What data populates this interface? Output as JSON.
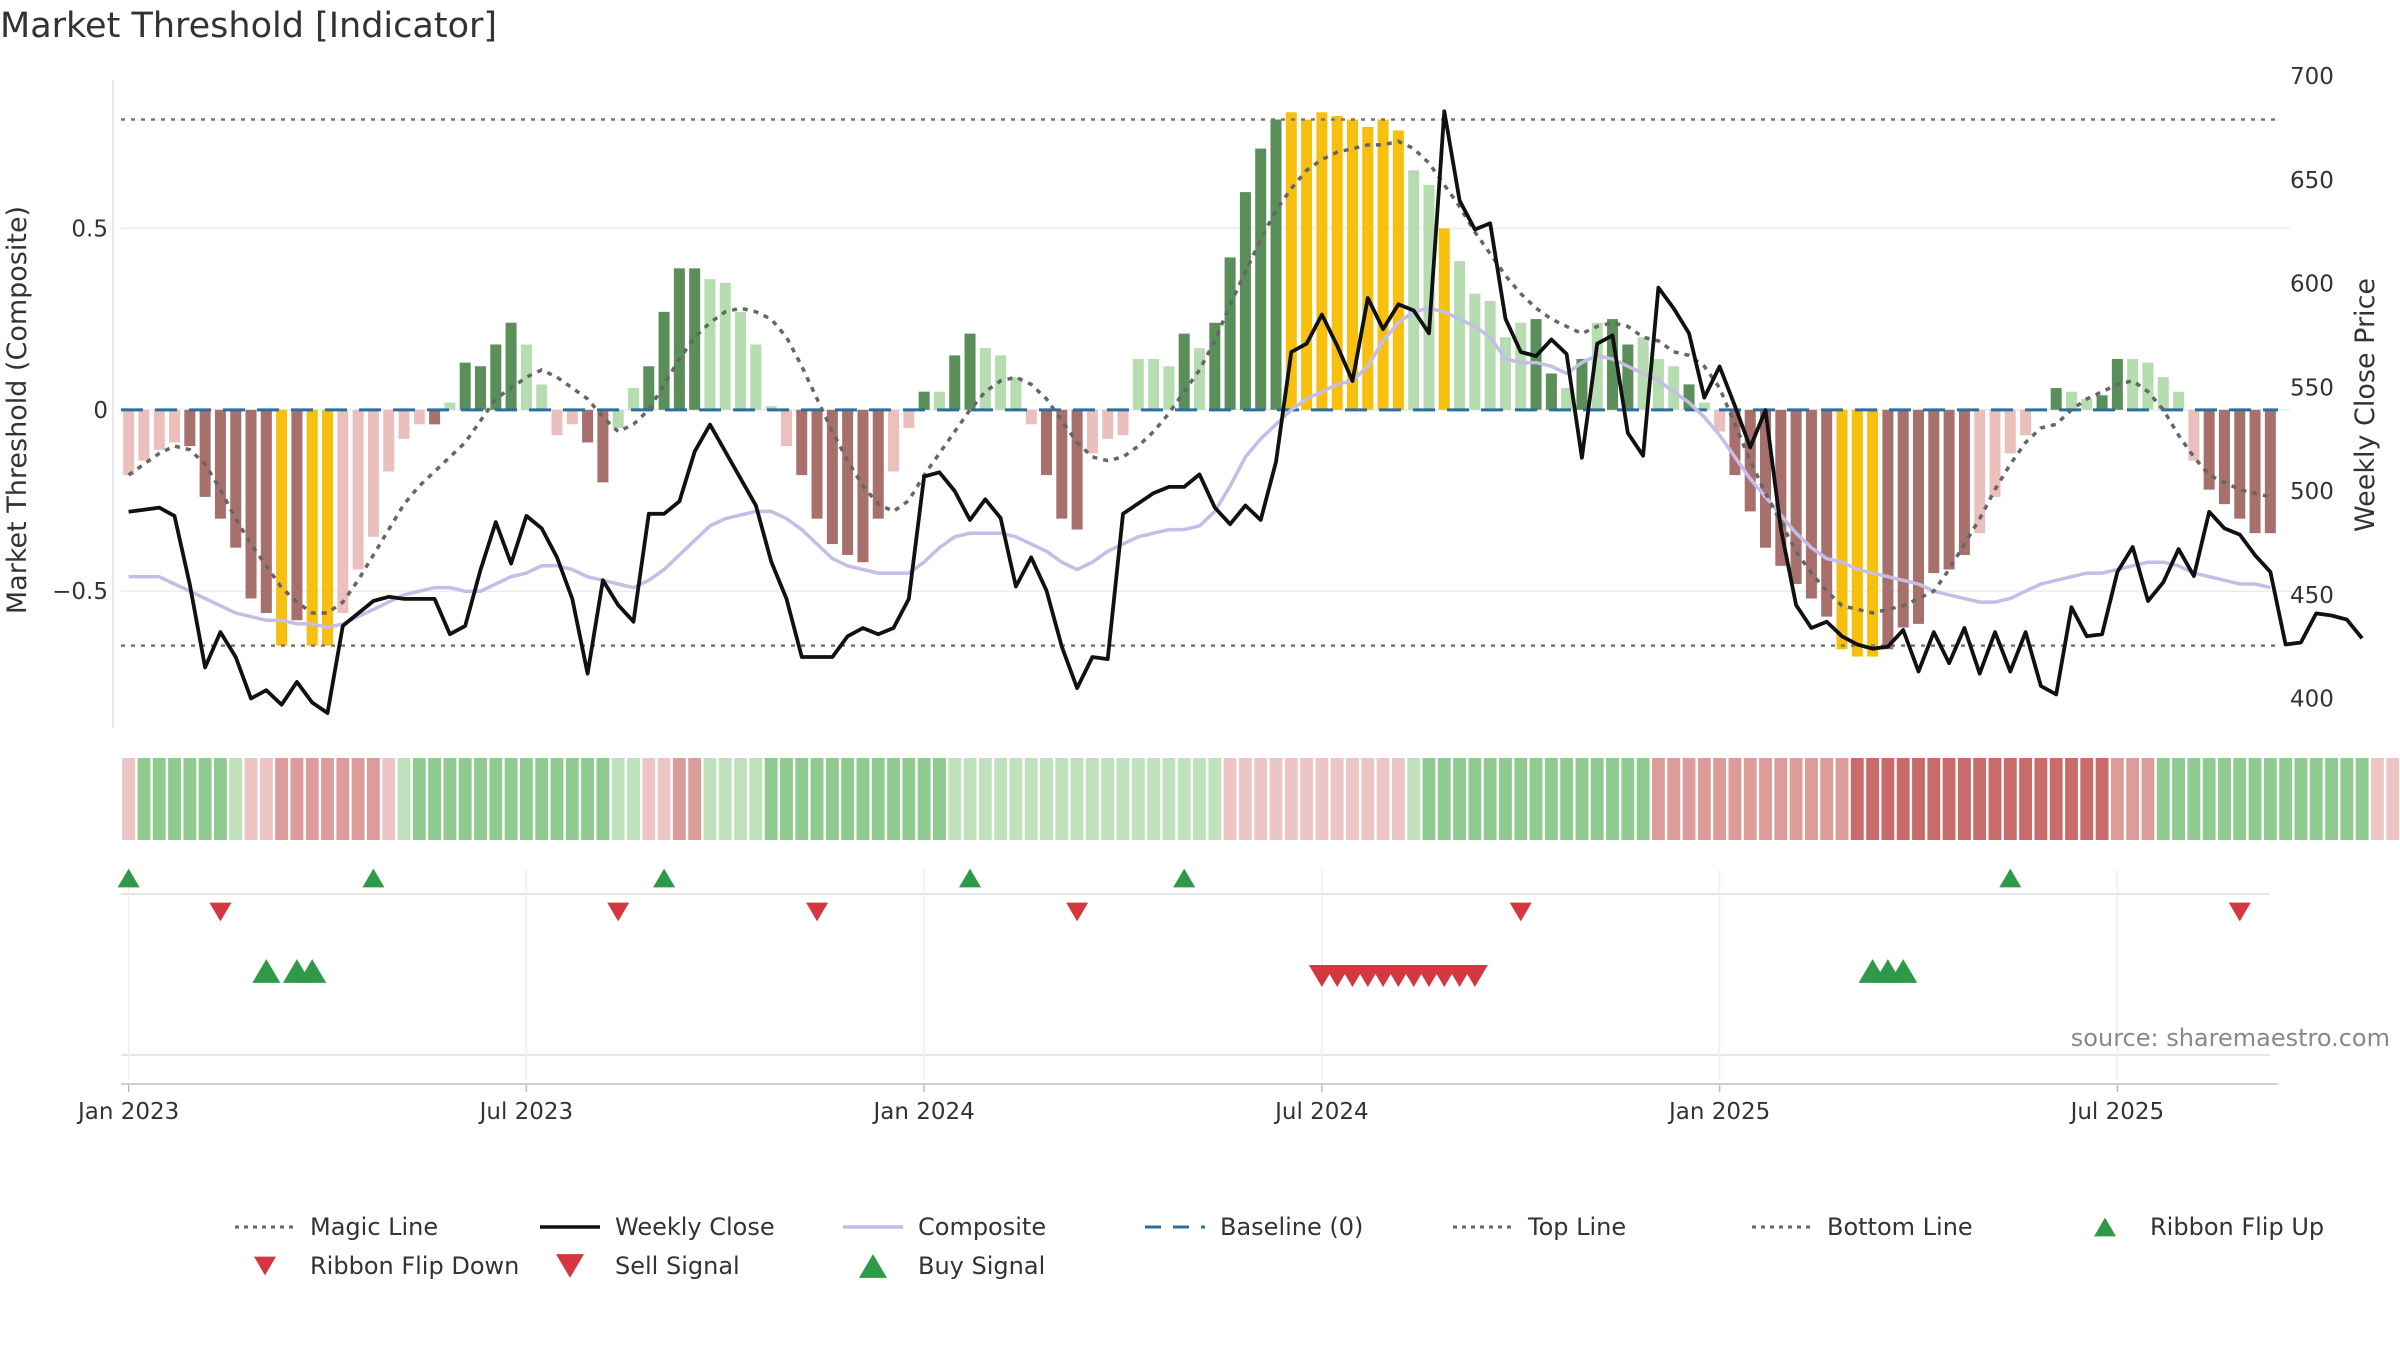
{
  "title": "Market Threshold [Indicator]",
  "source_text": "source: sharemaestro.com",
  "colors": {
    "weekly_close": "#111111",
    "composite": "#c5bde8",
    "magic_line": "#666666",
    "baseline": "#2a6fa0",
    "threshold_lines": "#777777",
    "bar_strong_green": "#5a8f5a",
    "bar_light_green": "#b5ddb0",
    "bar_strong_red": "#a8706c",
    "bar_light_red": "#ebc0bc",
    "bar_extreme": "#f7bf0e",
    "signal_up": "#2e9a47",
    "signal_down": "#d43740"
  },
  "chart_data": {
    "type": "bar",
    "title": "Market Threshold [Indicator]",
    "xlabel": "",
    "ylabel_left": "Market Threshold (Composite)",
    "ylabel_right": "Weekly Close Price",
    "ylim_left": [
      -0.91,
      0.92
    ],
    "ylim_right": [
      380,
      700
    ],
    "yticks_left": [
      0.5,
      0,
      -0.5
    ],
    "ytick_labels_left": [
      "0.5",
      "0",
      "−0.5"
    ],
    "yticks_right": [
      400,
      450,
      500,
      550,
      600,
      650,
      700
    ],
    "xticks": [
      "Jan 2023",
      "Jul 2023",
      "Jan 2024",
      "Jul 2024",
      "Jan 2025",
      "Jul 2025"
    ],
    "xtick_weeks": [
      0,
      26,
      52,
      78,
      104,
      130
    ],
    "start_label": "Jan 2023",
    "grid": true,
    "top_line": 0.8,
    "bottom_line": -0.65,
    "baseline": 0,
    "composite_bars": [
      -0.18,
      -0.14,
      -0.11,
      -0.09,
      -0.1,
      -0.24,
      -0.3,
      -0.38,
      -0.52,
      -0.56,
      -0.65,
      -0.58,
      -0.65,
      -0.65,
      -0.56,
      -0.44,
      -0.35,
      -0.17,
      -0.08,
      -0.04,
      -0.04,
      0.02,
      0.13,
      0.12,
      0.18,
      0.24,
      0.18,
      0.07,
      -0.07,
      -0.04,
      -0.09,
      -0.2,
      -0.05,
      0.06,
      0.12,
      0.27,
      0.39,
      0.39,
      0.36,
      0.35,
      0.27,
      0.18,
      0.01,
      -0.1,
      -0.18,
      -0.3,
      -0.37,
      -0.4,
      -0.42,
      -0.3,
      -0.17,
      -0.05,
      0.05,
      0.05,
      0.15,
      0.21,
      0.17,
      0.15,
      0.09,
      -0.04,
      -0.18,
      -0.3,
      -0.33,
      -0.12,
      -0.08,
      -0.07,
      0.14,
      0.14,
      0.12,
      0.21,
      0.17,
      0.24,
      0.42,
      0.6,
      0.72,
      0.8,
      0.82,
      0.8,
      0.82,
      0.81,
      0.8,
      0.78,
      0.8,
      0.77,
      0.66,
      0.62,
      0.5,
      0.41,
      0.32,
      0.3,
      0.2,
      0.24,
      0.25,
      0.1,
      0.06,
      0.14,
      0.24,
      0.25,
      0.18,
      0.2,
      0.14,
      0.12,
      0.07,
      0.02,
      -0.06,
      -0.18,
      -0.28,
      -0.38,
      -0.43,
      -0.48,
      -0.52,
      -0.57,
      -0.66,
      -0.68,
      -0.68,
      -0.66,
      -0.6,
      -0.59,
      -0.45,
      -0.44,
      -0.4,
      -0.34,
      -0.24,
      -0.12,
      -0.07,
      0.0,
      0.06,
      0.05,
      0.03,
      0.04,
      0.14,
      0.14,
      0.13,
      0.09,
      0.05,
      -0.14,
      -0.22,
      -0.26,
      -0.3,
      -0.34,
      -0.34
    ],
    "bar_categories": [
      "light_red",
      "light_red",
      "light_red",
      "light_red",
      "strong_red",
      "strong_red",
      "strong_red",
      "strong_red",
      "strong_red",
      "strong_red",
      "extreme",
      "strong_red",
      "extreme",
      "extreme",
      "light_red",
      "light_red",
      "light_red",
      "light_red",
      "light_red",
      "light_red",
      "strong_red",
      "light_green",
      "strong_green",
      "strong_green",
      "strong_green",
      "strong_green",
      "light_green",
      "light_green",
      "light_red",
      "light_red",
      "strong_red",
      "strong_red",
      "light_green",
      "light_green",
      "strong_green",
      "strong_green",
      "strong_green",
      "strong_green",
      "light_green",
      "light_green",
      "light_green",
      "light_green",
      "light_green",
      "light_red",
      "strong_red",
      "strong_red",
      "strong_red",
      "strong_red",
      "strong_red",
      "strong_red",
      "light_red",
      "light_red",
      "strong_green",
      "light_green",
      "strong_green",
      "strong_green",
      "light_green",
      "light_green",
      "light_green",
      "light_red",
      "strong_red",
      "strong_red",
      "strong_red",
      "light_red",
      "light_red",
      "light_red",
      "light_green",
      "light_green",
      "light_green",
      "strong_green",
      "light_green",
      "strong_green",
      "strong_green",
      "strong_green",
      "strong_green",
      "strong_green",
      "extreme",
      "extreme",
      "extreme",
      "extreme",
      "extreme",
      "extreme",
      "extreme",
      "extreme",
      "light_green",
      "light_green",
      "extreme",
      "light_green",
      "light_green",
      "light_green",
      "light_green",
      "light_green",
      "strong_green",
      "strong_green",
      "light_green",
      "strong_green",
      "light_green",
      "strong_green",
      "strong_green",
      "light_green",
      "light_green",
      "light_green",
      "strong_green",
      "light_green",
      "light_red",
      "strong_red",
      "strong_red",
      "strong_red",
      "strong_red",
      "strong_red",
      "strong_red",
      "strong_red",
      "extreme",
      "extreme",
      "extreme",
      "strong_red",
      "strong_red",
      "strong_red",
      "strong_red",
      "strong_red",
      "strong_red",
      "light_red",
      "light_red",
      "light_red",
      "light_red",
      "light_green",
      "strong_green",
      "light_green",
      "light_green",
      "strong_green",
      "strong_green",
      "light_green",
      "light_green",
      "light_green",
      "light_green",
      "light_red",
      "strong_red",
      "strong_red",
      "strong_red",
      "strong_red",
      "strong_red"
    ],
    "composite_line": [
      -0.46,
      -0.46,
      -0.46,
      -0.48,
      -0.5,
      -0.52,
      -0.54,
      -0.56,
      -0.57,
      -0.58,
      -0.58,
      -0.59,
      -0.59,
      -0.6,
      -0.59,
      -0.57,
      -0.55,
      -0.53,
      -0.51,
      -0.5,
      -0.49,
      -0.49,
      -0.5,
      -0.5,
      -0.48,
      -0.46,
      -0.45,
      -0.43,
      -0.43,
      -0.44,
      -0.46,
      -0.47,
      -0.48,
      -0.49,
      -0.47,
      -0.44,
      -0.4,
      -0.36,
      -0.32,
      -0.3,
      -0.29,
      -0.28,
      -0.28,
      -0.3,
      -0.33,
      -0.37,
      -0.41,
      -0.43,
      -0.44,
      -0.45,
      -0.45,
      -0.45,
      -0.42,
      -0.38,
      -0.35,
      -0.34,
      -0.34,
      -0.34,
      -0.35,
      -0.37,
      -0.39,
      -0.42,
      -0.44,
      -0.42,
      -0.39,
      -0.37,
      -0.35,
      -0.34,
      -0.33,
      -0.33,
      -0.32,
      -0.28,
      -0.21,
      -0.13,
      -0.08,
      -0.04,
      0.0,
      0.03,
      0.05,
      0.07,
      0.08,
      0.12,
      0.19,
      0.24,
      0.27,
      0.28,
      0.27,
      0.25,
      0.23,
      0.2,
      0.14,
      0.13,
      0.13,
      0.12,
      0.1,
      0.13,
      0.15,
      0.14,
      0.12,
      0.1,
      0.08,
      0.05,
      0.02,
      -0.02,
      -0.07,
      -0.13,
      -0.19,
      -0.24,
      -0.29,
      -0.34,
      -0.38,
      -0.41,
      -0.42,
      -0.44,
      -0.45,
      -0.46,
      -0.47,
      -0.48,
      -0.5,
      -0.51,
      -0.52,
      -0.53,
      -0.53,
      -0.52,
      -0.5,
      -0.48,
      -0.47,
      -0.46,
      -0.45,
      -0.45,
      -0.44,
      -0.43,
      -0.42,
      -0.42,
      -0.43,
      -0.45,
      -0.46,
      -0.47,
      -0.48,
      -0.48,
      -0.49
    ],
    "magic_line": [
      -0.18,
      -0.15,
      -0.12,
      -0.1,
      -0.11,
      -0.15,
      -0.22,
      -0.3,
      -0.37,
      -0.43,
      -0.49,
      -0.53,
      -0.56,
      -0.56,
      -0.53,
      -0.47,
      -0.4,
      -0.33,
      -0.26,
      -0.21,
      -0.17,
      -0.13,
      -0.09,
      -0.03,
      0.03,
      0.06,
      0.09,
      0.11,
      0.09,
      0.06,
      0.03,
      -0.02,
      -0.06,
      -0.04,
      0.0,
      0.07,
      0.14,
      0.2,
      0.24,
      0.27,
      0.28,
      0.27,
      0.25,
      0.2,
      0.12,
      0.03,
      -0.06,
      -0.14,
      -0.21,
      -0.26,
      -0.28,
      -0.25,
      -0.18,
      -0.12,
      -0.06,
      0.0,
      0.05,
      0.08,
      0.09,
      0.07,
      0.03,
      -0.03,
      -0.09,
      -0.13,
      -0.14,
      -0.13,
      -0.1,
      -0.06,
      -0.01,
      0.05,
      0.11,
      0.19,
      0.29,
      0.38,
      0.47,
      0.55,
      0.61,
      0.66,
      0.69,
      0.71,
      0.72,
      0.73,
      0.73,
      0.74,
      0.72,
      0.68,
      0.62,
      0.56,
      0.49,
      0.43,
      0.37,
      0.32,
      0.28,
      0.25,
      0.23,
      0.21,
      0.23,
      0.24,
      0.23,
      0.2,
      0.19,
      0.16,
      0.15,
      0.12,
      0.06,
      -0.04,
      -0.14,
      -0.23,
      -0.31,
      -0.39,
      -0.45,
      -0.5,
      -0.54,
      -0.55,
      -0.56,
      -0.55,
      -0.54,
      -0.52,
      -0.5,
      -0.44,
      -0.37,
      -0.3,
      -0.22,
      -0.15,
      -0.09,
      -0.05,
      -0.04,
      0.0,
      0.03,
      0.05,
      0.07,
      0.08,
      0.05,
      0.0,
      -0.07,
      -0.13,
      -0.18,
      -0.2,
      -0.22,
      -0.23,
      -0.24
    ],
    "weekly_close": [
      490,
      491,
      492,
      488,
      455,
      415,
      432,
      420,
      400,
      404,
      397,
      408,
      398,
      393,
      435,
      441,
      447,
      449,
      448,
      448,
      448,
      431,
      435,
      462,
      485,
      465,
      488,
      482,
      468,
      448,
      412,
      457,
      445,
      437,
      489,
      489,
      495,
      519,
      532,
      519,
      506,
      493,
      466,
      448,
      420,
      420,
      420,
      430,
      434,
      431,
      434,
      448,
      507,
      509,
      500,
      486,
      496,
      487,
      454,
      468,
      452,
      425,
      405,
      420,
      419,
      489,
      494,
      499,
      502,
      502,
      508,
      492,
      484,
      493,
      486,
      514,
      567,
      571,
      585,
      570,
      553,
      593,
      578,
      590,
      587,
      576,
      683,
      640,
      626,
      629,
      583,
      567,
      565,
      573,
      566,
      516,
      571,
      575,
      528,
      517,
      598,
      588,
      576,
      545,
      560,
      541,
      521,
      539,
      482,
      445,
      434,
      437,
      430,
      426,
      424,
      425,
      433,
      413,
      432,
      417,
      434,
      412,
      432,
      413,
      432,
      406,
      402,
      444,
      430,
      431,
      461,
      473,
      447,
      456,
      472,
      459,
      490,
      482,
      479,
      469,
      461,
      426,
      427,
      441,
      440,
      438,
      429
    ],
    "ribbon_levels": [
      -1,
      2,
      2,
      2,
      2,
      2,
      2,
      1,
      -1,
      -1,
      -2,
      -2,
      -2,
      -2,
      -2,
      -2,
      -2,
      -1,
      1,
      2,
      2,
      2,
      2,
      2,
      2,
      2,
      2,
      2,
      2,
      2,
      2,
      2,
      1,
      1,
      -1,
      -1,
      -2,
      -2,
      1,
      1,
      1,
      1,
      2,
      2,
      2,
      2,
      2,
      2,
      2,
      2,
      2,
      2,
      2,
      2,
      1,
      1,
      1,
      1,
      1,
      1,
      1,
      1,
      1,
      1,
      1,
      1,
      1,
      1,
      1,
      1,
      1,
      1,
      -1,
      -1,
      -1,
      -1,
      -1,
      -1,
      -1,
      -1,
      -1,
      -1,
      -1,
      -1,
      1,
      2,
      2,
      2,
      2,
      2,
      2,
      2,
      2,
      2,
      2,
      2,
      2,
      2,
      2,
      2,
      -2,
      -2,
      -2,
      -2,
      -2,
      -2,
      -2,
      -2,
      -2,
      -2,
      -2,
      -2,
      -2,
      -3,
      -3,
      -3,
      -3,
      -3,
      -3,
      -3,
      -3,
      -3,
      -3,
      -3,
      -3,
      -3,
      -3,
      -3,
      -3,
      -3,
      -2,
      -2,
      -2,
      2,
      2,
      2,
      2,
      2,
      2,
      2,
      2,
      2,
      2,
      2,
      2,
      2,
      2,
      -1,
      -1,
      -1,
      -1,
      -1
    ],
    "ribbon_flip_up_weeks": [
      0,
      16,
      35,
      55,
      69,
      123
    ],
    "ribbon_flip_down_weeks": [
      6,
      32,
      45,
      62,
      91,
      138
    ],
    "sell_signal_weeks": [
      78,
      79,
      80,
      81,
      82,
      83,
      84,
      85,
      86,
      87,
      88
    ],
    "buy_signal_weeks": [
      9,
      11,
      12,
      114,
      115,
      116
    ],
    "legend": [
      {
        "label": "Magic Line",
        "kind": "dotted"
      },
      {
        "label": "Weekly Close",
        "kind": "solid_black"
      },
      {
        "label": "Composite",
        "kind": "solid_lavender"
      },
      {
        "label": "Baseline (0)",
        "kind": "dashed_blue"
      },
      {
        "label": "Top Line",
        "kind": "dotted"
      },
      {
        "label": "Bottom Line",
        "kind": "dotted"
      },
      {
        "label": "Ribbon Flip Up",
        "kind": "tri_up_green"
      },
      {
        "label": "Ribbon Flip Down",
        "kind": "tri_down_red"
      },
      {
        "label": "Sell Signal",
        "kind": "tri_down_red_big"
      },
      {
        "label": "Buy Signal",
        "kind": "tri_up_green_big"
      }
    ]
  }
}
